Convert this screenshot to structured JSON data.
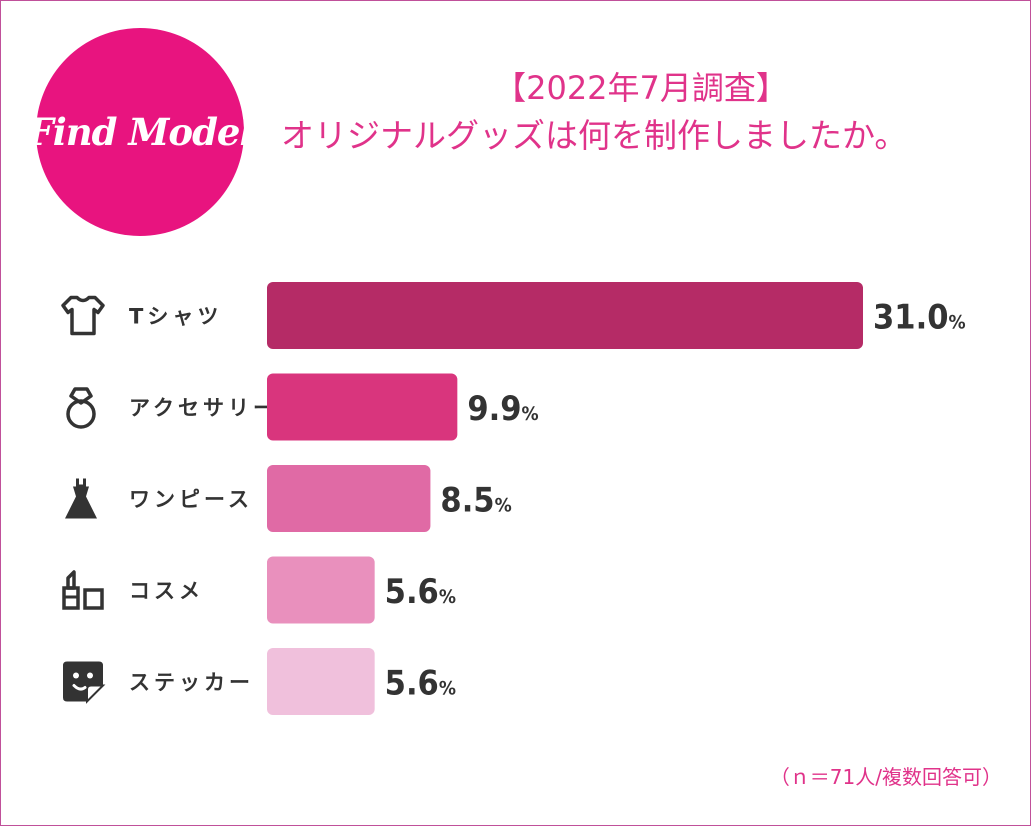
{
  "logo": {
    "text": "Find Model",
    "color": "#e8147f"
  },
  "title": {
    "line1": "【2022年7月調査】",
    "line2": "オリジナルグッズは何を制作しましたか。",
    "color": "#e0338a"
  },
  "note": "（ｎ＝71人/複数回答可）",
  "chart_data": {
    "type": "bar",
    "orientation": "horizontal",
    "categories": [
      "Tシャツ",
      "アクセサリー",
      "ワンピース",
      "コスメ",
      "ステッカー"
    ],
    "values": [
      31.0,
      9.9,
      8.5,
      5.6,
      5.6
    ],
    "value_labels": [
      "31.0",
      "9.9",
      "8.5",
      "5.6",
      "5.6"
    ],
    "unit": "%",
    "icons": [
      "t-shirt-icon",
      "ring-icon",
      "dress-icon",
      "cosmetics-icon",
      "sticker-icon"
    ],
    "colors": [
      "#b52b66",
      "#d9357d",
      "#e06aa5",
      "#e990bd",
      "#f0c0dc"
    ],
    "grid": false,
    "legend": "none"
  }
}
